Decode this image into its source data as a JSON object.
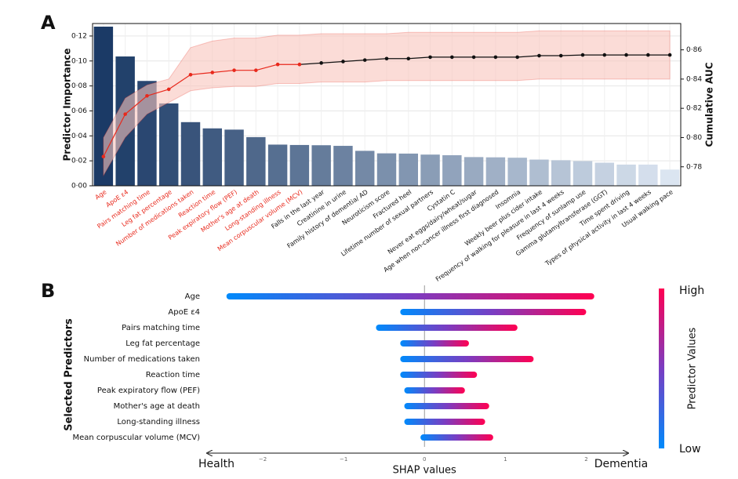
{
  "chart_data": [
    {
      "type": "bar",
      "panel_label": "A",
      "ylabel": "Predictor Importance",
      "y2label": "Cumulative AUC",
      "categories": [
        "Age",
        "ApoE ε4",
        "Pairs matching time",
        "Leg fat percentage",
        "Number of medications taken",
        "Reaction time",
        "Peak expiratory flow (PEF)",
        "Mother's age at death",
        "Long-standing illness",
        "Mean corpuscular volume (MCV)",
        "Falls in the last year",
        "Creatinine in urine",
        "Family history of dementia/ AD",
        "Neuroticism score",
        "Fractured heel",
        "Lifetime number of sexual partners",
        "Cystatin C",
        "Never eat eggs/dairy/wheat/sugar",
        "Age when non-cancer illness first diagnosed",
        "Insomnia",
        "Weekly beer plus cider intake",
        "Frequency of walking for pleasure in last 4 weeks",
        "Frequency of sunlamp use",
        "Gamma glutamyltransferase (GGT)",
        "Time spent driving",
        "Types of physical activity in last 4 weeks",
        "Usual walking pace"
      ],
      "category_colors": [
        "#e8291c",
        "#e8291c",
        "#e8291c",
        "#e8291c",
        "#e8291c",
        "#e8291c",
        "#e8291c",
        "#e8291c",
        "#e8291c",
        "#e8291c",
        "#111111",
        "#111111",
        "#111111",
        "#111111",
        "#111111",
        "#111111",
        "#111111",
        "#111111",
        "#111111",
        "#111111",
        "#111111",
        "#111111",
        "#111111",
        "#111111",
        "#111111",
        "#111111",
        "#111111"
      ],
      "values": [
        0.1275,
        0.1036,
        0.084,
        0.066,
        0.051,
        0.046,
        0.045,
        0.039,
        0.033,
        0.0327,
        0.0325,
        0.032,
        0.028,
        0.026,
        0.0258,
        0.025,
        0.0245,
        0.023,
        0.0228,
        0.0225,
        0.021,
        0.0205,
        0.0198,
        0.0185,
        0.017,
        0.017,
        0.013
      ],
      "bar_colormap": [
        "#1b3a66",
        "#dbe5f1"
      ],
      "ylim": [
        0,
        0.13
      ],
      "yticks": [
        {
          "value": 0,
          "label": "0·00"
        },
        {
          "value": 0.02,
          "label": "0·02"
        },
        {
          "value": 0.04,
          "label": "0·04"
        },
        {
          "value": 0.06,
          "label": "0·06"
        },
        {
          "value": 0.08,
          "label": "0·08"
        },
        {
          "value": 0.1,
          "label": "0·10"
        },
        {
          "value": 0.12,
          "label": "0·12"
        }
      ],
      "y2lim": [
        0.767,
        0.878
      ],
      "y2ticks": [
        {
          "value": 0.78,
          "label": "0·78"
        },
        {
          "value": 0.8,
          "label": "0·80"
        },
        {
          "value": 0.82,
          "label": "0·82"
        },
        {
          "value": 0.84,
          "label": "0·84"
        },
        {
          "value": 0.86,
          "label": "0·86"
        }
      ],
      "grid": true,
      "line": {
        "axis": "y2",
        "color": "#e8291c",
        "band_color": "#f8c5bd",
        "values": [
          0.787,
          0.816,
          0.8285,
          0.833,
          0.843,
          0.8445,
          0.846,
          0.846,
          0.85,
          0.85,
          0.851,
          0.852,
          0.853,
          0.854,
          0.854,
          0.855,
          0.855,
          0.855,
          0.855,
          0.855,
          0.856,
          0.856,
          0.8565,
          0.8565,
          0.8565,
          0.8565,
          0.8565
        ],
        "band_lower": [
          0.774,
          0.8,
          0.816,
          0.824,
          0.832,
          0.834,
          0.835,
          0.835,
          0.837,
          0.837,
          0.838,
          0.838,
          0.838,
          0.839,
          0.839,
          0.839,
          0.839,
          0.839,
          0.839,
          0.839,
          0.84,
          0.84,
          0.84,
          0.84,
          0.84,
          0.84,
          0.84
        ],
        "band_upper": [
          0.8,
          0.827,
          0.836,
          0.84,
          0.8615,
          0.866,
          0.868,
          0.868,
          0.87,
          0.87,
          0.871,
          0.871,
          0.871,
          0.871,
          0.872,
          0.872,
          0.872,
          0.872,
          0.872,
          0.872,
          0.873,
          0.873,
          0.873,
          0.873,
          0.873,
          0.873,
          0.873
        ]
      }
    },
    {
      "type": "range",
      "panel_label": "B",
      "ylabel": "Selected Predictors",
      "xlabel": "SHAP values",
      "left_note": "Health",
      "right_note": "Dementia",
      "categories": [
        "Age",
        "ApoE ε4",
        "Pairs matching time",
        "Leg fat percentage",
        "Number of medications taken",
        "Reaction time",
        "Peak expiratory flow (PEF)",
        "Mother's age at death",
        "Long-standing illness",
        "Mean corpuscular volume (MCV)"
      ],
      "low": [
        -2.45,
        -0.3,
        -0.6,
        -0.3,
        -0.3,
        -0.3,
        -0.25,
        -0.25,
        -0.25,
        -0.05
      ],
      "high": [
        2.1,
        2.0,
        1.15,
        0.55,
        1.35,
        0.65,
        0.5,
        0.8,
        0.75,
        0.85
      ],
      "xlim": [
        -2.68,
        2.51
      ],
      "xticks": [
        {
          "value": -2,
          "label": "−2"
        },
        {
          "value": -1,
          "label": "−1"
        },
        0,
        1,
        2
      ],
      "colorbar": {
        "label": "Predictor Values",
        "high": "High",
        "low": "Low",
        "colors": [
          "#ff0052",
          "#7a3dc2",
          "#008afb"
        ]
      }
    }
  ]
}
